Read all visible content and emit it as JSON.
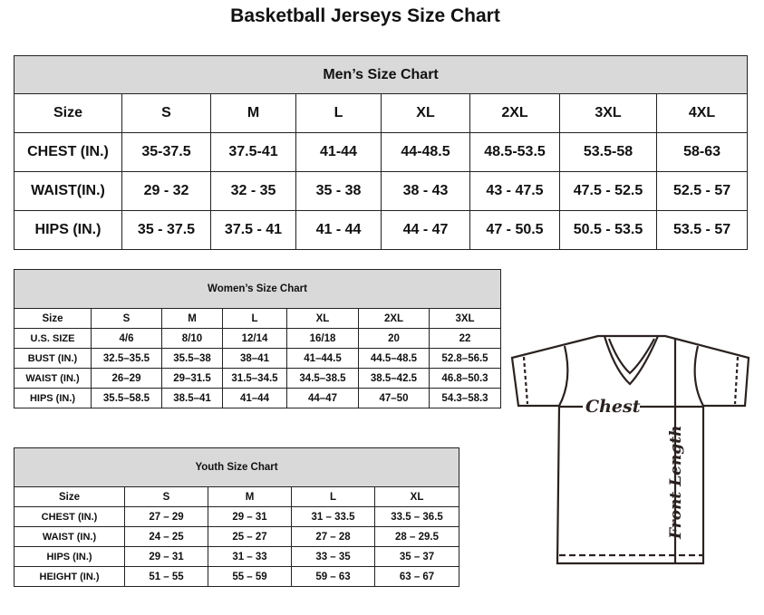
{
  "title": "Basketball Jerseys Size Chart",
  "men": {
    "heading": "Men’s Size Chart",
    "columns": [
      "Size",
      "S",
      "M",
      "L",
      "XL",
      "2XL",
      "3XL",
      "4XL"
    ],
    "rows": [
      [
        "CHEST (IN.)",
        "35-37.5",
        "37.5-41",
        "41-44",
        "44-48.5",
        "48.5-53.5",
        "53.5-58",
        "58-63"
      ],
      [
        "WAIST(IN.)",
        "29 - 32",
        "32 - 35",
        "35 - 38",
        "38 - 43",
        "43 - 47.5",
        "47.5 - 52.5",
        "52.5 - 57"
      ],
      [
        "HIPS (IN.)",
        "35 - 37.5",
        "37.5 - 41",
        "41 - 44",
        "44 - 47",
        "47 - 50.5",
        "50.5 - 53.5",
        "53.5 - 57"
      ]
    ]
  },
  "women": {
    "heading": "Women’s Size Chart",
    "columns": [
      "Size",
      "S",
      "M",
      "L",
      "XL",
      "2XL",
      "3XL"
    ],
    "rows": [
      [
        "U.S. SIZE",
        "4/6",
        "8/10",
        "12/14",
        "16/18",
        "20",
        "22"
      ],
      [
        "BUST (IN.)",
        "32.5–35.5",
        "35.5–38",
        "38–41",
        "41–44.5",
        "44.5–48.5",
        "52.8–56.5"
      ],
      [
        "WAIST (IN.)",
        "26–29",
        "29–31.5",
        "31.5–34.5",
        "34.5–38.5",
        "38.5–42.5",
        "46.8–50.3"
      ],
      [
        "HIPS (IN.)",
        "35.5–58.5",
        "38.5–41",
        "41–44",
        "44–47",
        "47–50",
        "54.3–58.3"
      ]
    ]
  },
  "youth": {
    "heading": "Youth Size Chart",
    "columns": [
      "Size",
      "S",
      "M",
      "L",
      "XL"
    ],
    "rows": [
      [
        "CHEST (IN.)",
        "27 – 29",
        "29 – 31",
        "31 – 33.5",
        "33.5 – 36.5"
      ],
      [
        "WAIST (IN.)",
        "24 – 25",
        "25 – 27",
        "27 – 28",
        "28 – 29.5"
      ],
      [
        "HIPS (IN.)",
        "29 – 31",
        "31 – 33",
        "33 – 35",
        "35 – 37"
      ],
      [
        "HEIGHT (IN.)",
        "51 – 55",
        "55 – 59",
        "59 – 63",
        "63 – 67"
      ]
    ]
  },
  "diagram": {
    "chest_label": "Chest",
    "length_label": "Front Length"
  }
}
